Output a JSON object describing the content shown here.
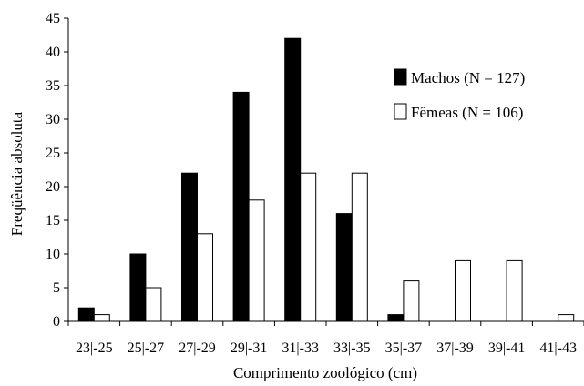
{
  "chart_data": {
    "type": "bar",
    "categories": [
      "23|-25",
      "25|-27",
      "27|-29",
      "29|-31",
      "31|-33",
      "33|-35",
      "35|-37",
      "37|-39",
      "39|-41",
      "41|-43"
    ],
    "series": [
      {
        "name": "Machos (N = 127)",
        "values": [
          2,
          10,
          22,
          34,
          42,
          16,
          1,
          0,
          0,
          0
        ],
        "color": "#000000"
      },
      {
        "name": "Fêmeas (N = 106)",
        "values": [
          1,
          5,
          13,
          18,
          22,
          22,
          6,
          9,
          9,
          1
        ],
        "color": "#ffffff"
      }
    ],
    "xlabel": "Comprimento zoológico (cm)",
    "ylabel": "Freqüência absoluta",
    "ylim": [
      0,
      45
    ],
    "yticks": [
      0,
      5,
      10,
      15,
      20,
      25,
      30,
      35,
      40,
      45
    ],
    "grid": false,
    "legend_position": "right"
  }
}
